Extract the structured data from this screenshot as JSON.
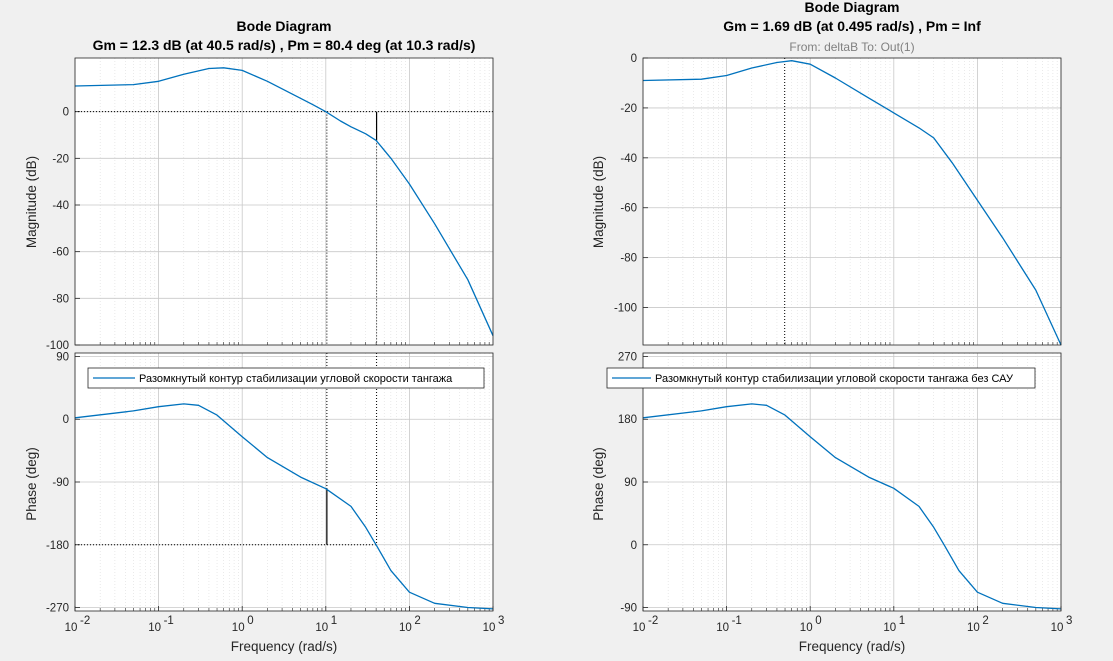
{
  "chart_data": [
    {
      "type": "line",
      "title": "Bode Diagram",
      "subtitle": "Gm = 12.3 dB (at 40.5 rad/s) ,  Pm = 80.4 deg (at 10.3 rad/s)",
      "io_label": "",
      "legend": "Разомкнутый контур стабилизации угловой скорости тангажа",
      "xlabel": "Frequency  (rad/s)",
      "x_scale": "log",
      "xlim": [
        0.01,
        1000
      ],
      "x_ticks": [
        0.01,
        0.1,
        1,
        10,
        100,
        1000
      ],
      "x_tick_labels": [
        [
          "10",
          "-2"
        ],
        [
          "10",
          "-1"
        ],
        [
          "10",
          "0"
        ],
        [
          "10",
          "1"
        ],
        [
          "10",
          "2"
        ],
        [
          "10",
          "3"
        ]
      ],
      "grid": true,
      "color": "#0072bd",
      "magnitude": {
        "ylabel": "Magnitude (dB)",
        "ylim": [
          -100,
          23
        ],
        "y_ticks": [
          -100,
          -80,
          -60,
          -40,
          -20,
          0
        ],
        "y_tick_labels": [
          "-100",
          "-80",
          "-60",
          "-40",
          "-20",
          "0"
        ],
        "points": [
          [
            0.01,
            11
          ],
          [
            0.05,
            11.6
          ],
          [
            0.1,
            13
          ],
          [
            0.2,
            16
          ],
          [
            0.4,
            18.5
          ],
          [
            0.6,
            18.8
          ],
          [
            1,
            17.7
          ],
          [
            2,
            13
          ],
          [
            4,
            7.5
          ],
          [
            7,
            3
          ],
          [
            10,
            0
          ],
          [
            15,
            -4
          ],
          [
            20,
            -6.5
          ],
          [
            30,
            -9.5
          ],
          [
            40,
            -12.3
          ],
          [
            60,
            -20
          ],
          [
            100,
            -31
          ],
          [
            200,
            -48
          ],
          [
            500,
            -72
          ],
          [
            1000,
            -96
          ]
        ]
      },
      "phase": {
        "ylabel": "Phase (deg)",
        "ylim": [
          -275,
          95
        ],
        "y_ticks": [
          -270,
          -180,
          -90,
          0,
          90
        ],
        "y_tick_labels": [
          "-270",
          "-180",
          "-90",
          "0",
          "90"
        ],
        "points": [
          [
            0.01,
            2
          ],
          [
            0.05,
            12
          ],
          [
            0.1,
            18
          ],
          [
            0.2,
            22
          ],
          [
            0.3,
            20
          ],
          [
            0.5,
            6
          ],
          [
            1,
            -25
          ],
          [
            2,
            -55
          ],
          [
            5,
            -83
          ],
          [
            10,
            -99.6
          ],
          [
            20,
            -125
          ],
          [
            30,
            -155
          ],
          [
            40,
            -180
          ],
          [
            60,
            -217
          ],
          [
            100,
            -248
          ],
          [
            200,
            -264
          ],
          [
            500,
            -270
          ],
          [
            1000,
            -272
          ]
        ]
      },
      "margins": {
        "gm_db": 12.3,
        "gm_freq": 40.5,
        "pm_deg": 80.4,
        "pm_freq": 10.3,
        "crossover_level_db": 0,
        "phase_ref_deg": -180
      }
    },
    {
      "type": "line",
      "title": "Bode Diagram",
      "subtitle": "Gm = 1.69 dB (at 0.495 rad/s) ,  Pm = Inf",
      "io_label": "From: deltaB  To: Out(1)",
      "legend": "Разомкнутый контур стабилизации угловой скорости тангажа без САУ",
      "xlabel": "Frequency  (rad/s)",
      "x_scale": "log",
      "xlim": [
        0.01,
        1000
      ],
      "x_ticks": [
        0.01,
        0.1,
        1,
        10,
        100,
        1000
      ],
      "x_tick_labels": [
        [
          "10",
          "-2"
        ],
        [
          "10",
          "-1"
        ],
        [
          "10",
          "0"
        ],
        [
          "10",
          "1"
        ],
        [
          "10",
          "2"
        ],
        [
          "10",
          "3"
        ]
      ],
      "grid": true,
      "color": "#0072bd",
      "magnitude": {
        "ylabel": "Magnitude (dB)",
        "ylim": [
          -115,
          0
        ],
        "y_ticks": [
          -100,
          -80,
          -60,
          -40,
          -20,
          0
        ],
        "y_tick_labels": [
          "-100",
          "-80",
          "-60",
          "-40",
          "-20",
          "0"
        ],
        "points": [
          [
            0.01,
            -9
          ],
          [
            0.05,
            -8.5
          ],
          [
            0.1,
            -7
          ],
          [
            0.2,
            -4
          ],
          [
            0.4,
            -1.8
          ],
          [
            0.6,
            -1.1
          ],
          [
            1,
            -2.5
          ],
          [
            2,
            -8
          ],
          [
            5,
            -16
          ],
          [
            10,
            -22
          ],
          [
            20,
            -28
          ],
          [
            30,
            -32
          ],
          [
            50,
            -42
          ],
          [
            100,
            -57
          ],
          [
            200,
            -72
          ],
          [
            500,
            -93
          ],
          [
            1000,
            -115
          ]
        ]
      },
      "phase": {
        "ylabel": "Phase (deg)",
        "ylim": [
          -95,
          275
        ],
        "y_ticks": [
          -90,
          0,
          90,
          180,
          270
        ],
        "y_tick_labels": [
          "-90",
          "0",
          "90",
          "180",
          "270"
        ],
        "points": [
          [
            0.01,
            182
          ],
          [
            0.05,
            192
          ],
          [
            0.1,
            198
          ],
          [
            0.2,
            202
          ],
          [
            0.3,
            200
          ],
          [
            0.5,
            186
          ],
          [
            1,
            155
          ],
          [
            2,
            125
          ],
          [
            5,
            97
          ],
          [
            10,
            81
          ],
          [
            20,
            55
          ],
          [
            30,
            25
          ],
          [
            40,
            0
          ],
          [
            60,
            -37
          ],
          [
            100,
            -68
          ],
          [
            200,
            -84
          ],
          [
            500,
            -90
          ],
          [
            1000,
            -92
          ]
        ]
      },
      "margins": {
        "gm_freq": 0.495
      }
    }
  ]
}
